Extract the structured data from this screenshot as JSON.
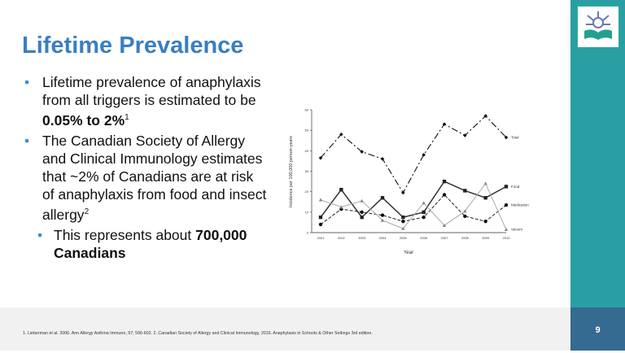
{
  "title": "Lifetime Prevalence",
  "bullets": [
    {
      "text": "Lifetime prevalence of anaphylaxis from all triggers is estimated to be ",
      "bold": "0.05% to 2%",
      "sup": "1"
    },
    {
      "text": "The Canadian Society of Allergy and Clinical Immunology estimates that ~2% of Canadians are at risk of anaphylaxis from food and insect allergy",
      "sup": "2"
    },
    {
      "text": "This represents about ",
      "bold": "700,000 Canadians"
    }
  ],
  "footer": {
    "citation": "1. Lieberman et al. 2006. Ann Allergy Asthma Immuno, 97; 596-602. 2. Canadian Society of Allergy and Clinical Immunology, 2016. Anaphylaxis in Schools & Other Settings 3rd edition.",
    "page": "9"
  },
  "colors": {
    "title": "#3a7fc1",
    "side": "#2a9fa3",
    "page_box": "#356a91"
  },
  "chart_data": {
    "type": "line",
    "xlabel": "Year",
    "ylabel": "Incidence per 100,000 person-years",
    "ylim": [
      0,
      60
    ],
    "yticks": [
      "0",
      "10",
      "20",
      "30",
      "40",
      "50",
      "60"
    ],
    "categories": [
      "2001",
      "2002",
      "2003",
      "2004",
      "2005",
      "2006",
      "2007",
      "2008",
      "2009",
      "2010"
    ],
    "series": [
      {
        "name": "Total",
        "values": [
          36.5,
          48,
          39.5,
          36,
          19.5,
          38,
          53,
          47.5,
          57,
          46.5
        ]
      },
      {
        "name": "Food",
        "values": [
          7.5,
          21,
          7.5,
          17,
          7.5,
          10,
          25,
          20.5,
          17,
          22.5
        ]
      },
      {
        "name": "Medication",
        "values": [
          4,
          11.5,
          10,
          8.5,
          5.5,
          7.5,
          18.5,
          8,
          5.5,
          13.5
        ]
      },
      {
        "name": "Venom",
        "values": [
          16,
          12.5,
          15.5,
          6,
          2,
          14.5,
          3.5,
          10.5,
          24,
          1.5
        ]
      }
    ]
  }
}
